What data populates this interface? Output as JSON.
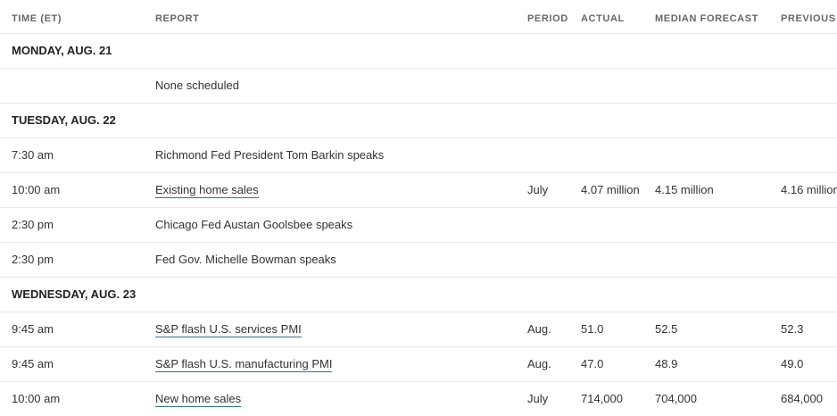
{
  "headers": {
    "time": "TIME (ET)",
    "report": "REPORT",
    "period": "PERIOD",
    "actual": "ACTUAL",
    "median": "MEDIAN FORECAST",
    "previous": "PREVIOUS"
  },
  "days": [
    {
      "label": "MONDAY, AUG. 21",
      "events": [
        {
          "time": "",
          "report": "None scheduled",
          "link": false,
          "period": "",
          "actual": "",
          "median": "",
          "previous": ""
        }
      ]
    },
    {
      "label": "TUESDAY, AUG. 22",
      "events": [
        {
          "time": "7:30 am",
          "report": "Richmond Fed President Tom Barkin speaks",
          "link": false,
          "period": "",
          "actual": "",
          "median": "",
          "previous": ""
        },
        {
          "time": "10:00 am",
          "report": "Existing home sales",
          "link": true,
          "period": "July",
          "actual": "4.07 million",
          "median": "4.15 million",
          "previous": "4.16 million"
        },
        {
          "time": "2:30 pm",
          "report": "Chicago Fed Austan Goolsbee speaks",
          "link": false,
          "period": "",
          "actual": "",
          "median": "",
          "previous": ""
        },
        {
          "time": "2:30 pm",
          "report": "Fed Gov. Michelle Bowman speaks",
          "link": false,
          "period": "",
          "actual": "",
          "median": "",
          "previous": ""
        }
      ]
    },
    {
      "label": "WEDNESDAY, AUG. 23",
      "events": [
        {
          "time": "9:45 am",
          "report": "S&P flash U.S. services PMI",
          "link": true,
          "period": "Aug.",
          "actual": "51.0",
          "median": "52.5",
          "previous": "52.3"
        },
        {
          "time": "9:45 am",
          "report": "S&P flash U.S. manufacturing PMI",
          "link": true,
          "period": "Aug.",
          "actual": "47.0",
          "median": "48.9",
          "previous": "49.0"
        },
        {
          "time": "10:00 am",
          "report": "New home sales",
          "link": true,
          "period": "July",
          "actual": "714,000",
          "median": "704,000",
          "previous": "684,000"
        }
      ]
    }
  ]
}
